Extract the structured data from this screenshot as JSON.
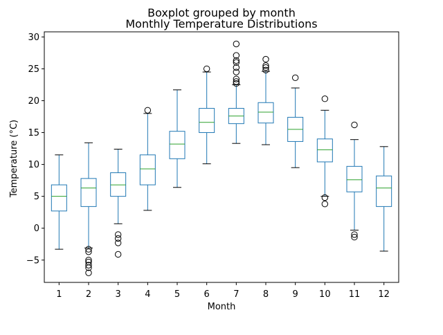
{
  "chart_data": {
    "type": "boxplot",
    "suptitle": "Boxplot grouped by month",
    "title": "Monthly Temperature Distributions",
    "xlabel": "Month",
    "ylabel": "Temperature (°C)",
    "categories": [
      "1",
      "2",
      "3",
      "4",
      "5",
      "6",
      "7",
      "8",
      "9",
      "10",
      "11",
      "12"
    ],
    "ylim": [
      -8.5,
      30.8
    ],
    "yticks": [
      -5,
      0,
      5,
      10,
      15,
      20,
      25,
      30
    ],
    "grid": false,
    "colors": {
      "box": "#1f77b4",
      "median": "#2ca02c",
      "flier": "#000000",
      "cap": "#000000"
    },
    "boxes": [
      {
        "label": "1",
        "whisker_low": -3.3,
        "q1": 2.7,
        "median": 5.0,
        "q3": 6.8,
        "whisker_high": 11.5,
        "fliers": []
      },
      {
        "label": "2",
        "whisker_low": -3.1,
        "q1": 3.4,
        "median": 6.3,
        "q3": 7.8,
        "whisker_high": 13.4,
        "fliers": [
          -3.3,
          -3.7,
          -5.0,
          -5.3,
          -5.8,
          -6.2,
          -7.0
        ]
      },
      {
        "label": "3",
        "whisker_low": 0.7,
        "q1": 5.0,
        "median": 6.8,
        "q3": 8.7,
        "whisker_high": 12.4,
        "fliers": [
          -1.0,
          -1.6,
          -2.3,
          -4.1
        ]
      },
      {
        "label": "4",
        "whisker_low": 2.8,
        "q1": 6.8,
        "median": 9.3,
        "q3": 11.5,
        "whisker_high": 18.0,
        "fliers": [
          18.5
        ]
      },
      {
        "label": "5",
        "whisker_low": 6.4,
        "q1": 10.9,
        "median": 13.2,
        "q3": 15.2,
        "whisker_high": 21.7,
        "fliers": []
      },
      {
        "label": "6",
        "whisker_low": 10.1,
        "q1": 15.0,
        "median": 16.6,
        "q3": 18.8,
        "whisker_high": 24.5,
        "fliers": [
          25.0
        ]
      },
      {
        "label": "7",
        "whisker_low": 13.3,
        "q1": 16.4,
        "median": 17.6,
        "q3": 18.8,
        "whisker_high": 22.5,
        "fliers": [
          22.7,
          23.0,
          23.4,
          24.5,
          25.2,
          26.0,
          26.3,
          27.1,
          28.9
        ]
      },
      {
        "label": "8",
        "whisker_low": 13.1,
        "q1": 16.5,
        "median": 18.2,
        "q3": 19.7,
        "whisker_high": 24.6,
        "fliers": [
          24.8,
          25.2,
          25.5,
          26.5
        ]
      },
      {
        "label": "9",
        "whisker_low": 9.5,
        "q1": 13.6,
        "median": 15.5,
        "q3": 17.4,
        "whisker_high": 22.0,
        "fliers": [
          23.6
        ]
      },
      {
        "label": "10",
        "whisker_low": 5.0,
        "q1": 10.4,
        "median": 12.3,
        "q3": 14.0,
        "whisker_high": 18.5,
        "fliers": [
          4.8,
          3.8,
          20.3
        ]
      },
      {
        "label": "11",
        "whisker_low": -0.3,
        "q1": 5.7,
        "median": 7.6,
        "q3": 9.7,
        "whisker_high": 13.9,
        "fliers": [
          -1.0,
          -1.4,
          16.2
        ]
      },
      {
        "label": "12",
        "whisker_low": -3.6,
        "q1": 3.4,
        "median": 6.3,
        "q3": 8.2,
        "whisker_high": 12.8,
        "fliers": []
      }
    ]
  }
}
